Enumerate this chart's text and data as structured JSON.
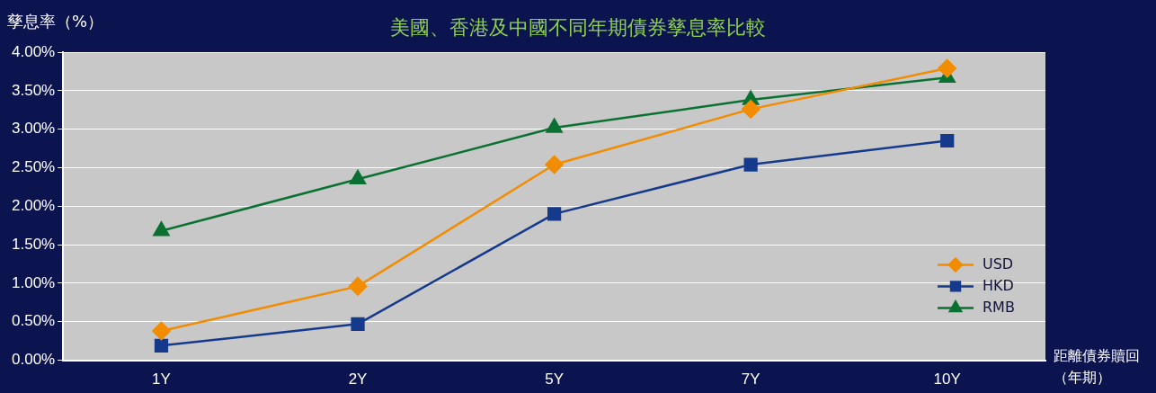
{
  "chart_data": {
    "type": "line",
    "title": "美國、香港及中國不同年期債券孳息率比較",
    "ylabel": "孳息率（%）",
    "xlabel": "距離債券贖回（年期）",
    "categories": [
      "1Y",
      "2Y",
      "5Y",
      "7Y",
      "10Y"
    ],
    "series": [
      {
        "name": "USD",
        "color": "#f28c00",
        "marker": "diamond",
        "values": [
          0.38,
          0.96,
          2.54,
          3.26,
          3.79
        ]
      },
      {
        "name": "HKD",
        "color": "#153a8c",
        "marker": "square",
        "values": [
          0.19,
          0.47,
          1.9,
          2.54,
          2.85
        ]
      },
      {
        "name": "RMB",
        "color": "#0b7132",
        "marker": "triangle",
        "values": [
          1.68,
          2.35,
          3.02,
          3.38,
          3.67
        ]
      }
    ],
    "ylim": [
      0,
      4
    ],
    "yticks": [
      {
        "value": 0,
        "label": "0.00%"
      },
      {
        "value": 0.5,
        "label": "0.50%"
      },
      {
        "value": 1,
        "label": "1.00%"
      },
      {
        "value": 1.5,
        "label": "1.50%"
      },
      {
        "value": 2,
        "label": "2.00%"
      },
      {
        "value": 2.5,
        "label": "2.50%"
      },
      {
        "value": 3,
        "label": "3.00%"
      },
      {
        "value": 3.5,
        "label": "3.50%"
      },
      {
        "value": 4,
        "label": "4.00%"
      }
    ],
    "grid": "y",
    "legend": "right",
    "line_style": "solid"
  }
}
